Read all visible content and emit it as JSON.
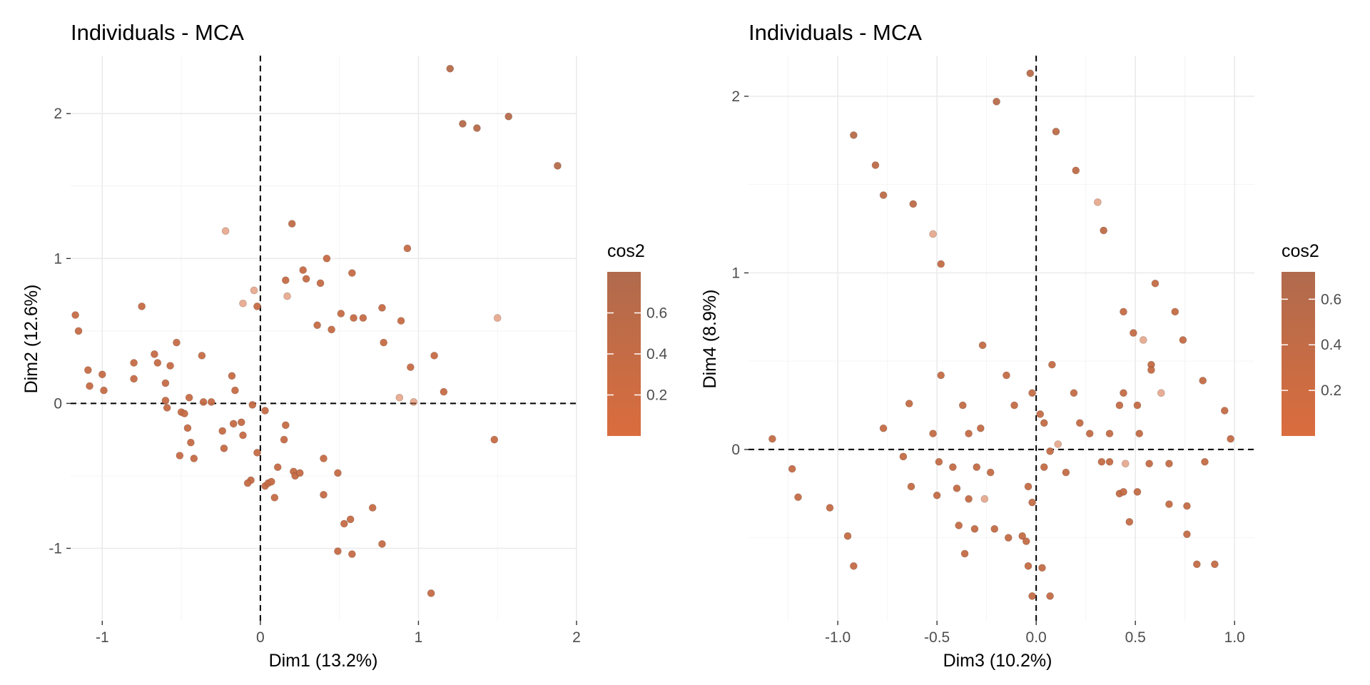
{
  "legend_gradient": {
    "low": "#DA6C3E",
    "high": "#B06B4D"
  },
  "chart_data": [
    {
      "type": "scatter",
      "title": "Individuals - MCA",
      "xlabel": "Dim1 (13.2%)",
      "ylabel": "Dim2 (12.6%)",
      "xlim": [
        -1.2,
        2.0
      ],
      "ylim": [
        -1.5,
        2.4
      ],
      "xticks": [
        -1,
        0,
        1,
        2
      ],
      "xtick_labels": [
        "-1",
        "0",
        "1",
        "2"
      ],
      "yticks": [
        -1,
        0,
        1,
        2
      ],
      "ytick_labels": [
        "-1",
        "0",
        "1",
        "2"
      ],
      "grid": true,
      "reference_lines": "x=0, y=0 (dashed)",
      "color_by": "cos2",
      "legend": {
        "title": "cos2",
        "ticks": [
          0.2,
          0.4,
          0.6
        ],
        "tick_labels": [
          "0.2",
          "0.4",
          "0.6"
        ],
        "range": [
          0.0,
          0.8
        ],
        "position": "right"
      },
      "points": [
        {
          "x": 1.2,
          "y": 2.31,
          "c": 0.7
        },
        {
          "x": 1.28,
          "y": 1.93,
          "c": 0.7
        },
        {
          "x": 1.37,
          "y": 1.9,
          "c": 0.7
        },
        {
          "x": 1.57,
          "y": 1.98,
          "c": 0.7
        },
        {
          "x": 1.88,
          "y": 1.64,
          "c": 0.7
        },
        {
          "x": -0.22,
          "y": 1.19,
          "c": 0.1
        },
        {
          "x": 0.2,
          "y": 1.24,
          "c": 0.5
        },
        {
          "x": 0.42,
          "y": 1.0,
          "c": 0.4
        },
        {
          "x": 0.93,
          "y": 1.07,
          "c": 0.4
        },
        {
          "x": 0.27,
          "y": 0.92,
          "c": 0.4
        },
        {
          "x": 0.16,
          "y": 0.85,
          "c": 0.4
        },
        {
          "x": 0.29,
          "y": 0.86,
          "c": 0.4
        },
        {
          "x": 0.38,
          "y": 0.83,
          "c": 0.4
        },
        {
          "x": 0.58,
          "y": 0.9,
          "c": 0.4
        },
        {
          "x": -0.04,
          "y": 0.78,
          "c": 0.1
        },
        {
          "x": 0.17,
          "y": 0.74,
          "c": 0.1
        },
        {
          "x": -0.11,
          "y": 0.69,
          "c": 0.1
        },
        {
          "x": -0.02,
          "y": 0.67,
          "c": 0.4
        },
        {
          "x": 0.51,
          "y": 0.62,
          "c": 0.4
        },
        {
          "x": 0.77,
          "y": 0.66,
          "c": 0.4
        },
        {
          "x": 0.59,
          "y": 0.59,
          "c": 0.4
        },
        {
          "x": 0.65,
          "y": 0.59,
          "c": 0.4
        },
        {
          "x": 0.89,
          "y": 0.57,
          "c": 0.4
        },
        {
          "x": 1.5,
          "y": 0.59,
          "c": 0.1
        },
        {
          "x": 0.36,
          "y": 0.54,
          "c": 0.4
        },
        {
          "x": 0.45,
          "y": 0.51,
          "c": 0.4
        },
        {
          "x": 0.78,
          "y": 0.42,
          "c": 0.4
        },
        {
          "x": 1.1,
          "y": 0.33,
          "c": 0.4
        },
        {
          "x": 0.95,
          "y": 0.25,
          "c": 0.4
        },
        {
          "x": 1.16,
          "y": 0.08,
          "c": 0.4
        },
        {
          "x": 0.88,
          "y": 0.04,
          "c": 0.1
        },
        {
          "x": 0.97,
          "y": 0.01,
          "c": 0.1
        },
        {
          "x": 1.48,
          "y": -0.25,
          "c": 0.4
        },
        {
          "x": -1.17,
          "y": 0.61,
          "c": 0.4
        },
        {
          "x": -1.15,
          "y": 0.5,
          "c": 0.4
        },
        {
          "x": -0.75,
          "y": 0.67,
          "c": 0.4
        },
        {
          "x": -1.09,
          "y": 0.23,
          "c": 0.4
        },
        {
          "x": -1.0,
          "y": 0.2,
          "c": 0.4
        },
        {
          "x": -1.08,
          "y": 0.12,
          "c": 0.4
        },
        {
          "x": -0.99,
          "y": 0.09,
          "c": 0.4
        },
        {
          "x": -0.8,
          "y": 0.28,
          "c": 0.4
        },
        {
          "x": -0.8,
          "y": 0.17,
          "c": 0.4
        },
        {
          "x": -0.67,
          "y": 0.34,
          "c": 0.4
        },
        {
          "x": -0.65,
          "y": 0.28,
          "c": 0.4
        },
        {
          "x": -0.53,
          "y": 0.42,
          "c": 0.4
        },
        {
          "x": -0.57,
          "y": 0.26,
          "c": 0.4
        },
        {
          "x": -0.37,
          "y": 0.33,
          "c": 0.4
        },
        {
          "x": -0.6,
          "y": 0.14,
          "c": 0.4
        },
        {
          "x": -0.6,
          "y": 0.02,
          "c": 0.4
        },
        {
          "x": -0.59,
          "y": -0.03,
          "c": 0.4
        },
        {
          "x": -0.5,
          "y": -0.06,
          "c": 0.4
        },
        {
          "x": -0.48,
          "y": -0.07,
          "c": 0.4
        },
        {
          "x": -0.45,
          "y": 0.04,
          "c": 0.4
        },
        {
          "x": -0.36,
          "y": 0.01,
          "c": 0.4
        },
        {
          "x": -0.31,
          "y": 0.01,
          "c": 0.4
        },
        {
          "x": -0.18,
          "y": 0.19,
          "c": 0.4
        },
        {
          "x": -0.16,
          "y": 0.09,
          "c": 0.4
        },
        {
          "x": -0.05,
          "y": -0.01,
          "c": 0.4
        },
        {
          "x": 0.03,
          "y": -0.05,
          "c": 0.4
        },
        {
          "x": -0.46,
          "y": -0.17,
          "c": 0.4
        },
        {
          "x": -0.44,
          "y": -0.27,
          "c": 0.4
        },
        {
          "x": -0.51,
          "y": -0.36,
          "c": 0.4
        },
        {
          "x": -0.42,
          "y": -0.38,
          "c": 0.4
        },
        {
          "x": -0.24,
          "y": -0.19,
          "c": 0.4
        },
        {
          "x": -0.23,
          "y": -0.31,
          "c": 0.4
        },
        {
          "x": -0.17,
          "y": -0.14,
          "c": 0.4
        },
        {
          "x": -0.12,
          "y": -0.13,
          "c": 0.4
        },
        {
          "x": -0.11,
          "y": -0.22,
          "c": 0.4
        },
        {
          "x": 0.16,
          "y": -0.15,
          "c": 0.4
        },
        {
          "x": 0.15,
          "y": -0.25,
          "c": 0.4
        },
        {
          "x": -0.02,
          "y": -0.34,
          "c": 0.4
        },
        {
          "x": -0.06,
          "y": -0.53,
          "c": 0.4
        },
        {
          "x": -0.08,
          "y": -0.55,
          "c": 0.4
        },
        {
          "x": 0.03,
          "y": -0.57,
          "c": 0.4
        },
        {
          "x": 0.05,
          "y": -0.55,
          "c": 0.4
        },
        {
          "x": 0.07,
          "y": -0.54,
          "c": 0.4
        },
        {
          "x": 0.09,
          "y": -0.65,
          "c": 0.4
        },
        {
          "x": 0.11,
          "y": -0.44,
          "c": 0.4
        },
        {
          "x": 0.21,
          "y": -0.47,
          "c": 0.4
        },
        {
          "x": 0.22,
          "y": -0.5,
          "c": 0.4
        },
        {
          "x": 0.25,
          "y": -0.48,
          "c": 0.4
        },
        {
          "x": 0.4,
          "y": -0.38,
          "c": 0.4
        },
        {
          "x": 0.49,
          "y": -0.48,
          "c": 0.4
        },
        {
          "x": 0.4,
          "y": -0.63,
          "c": 0.4
        },
        {
          "x": 0.71,
          "y": -0.72,
          "c": 0.4
        },
        {
          "x": 0.53,
          "y": -0.83,
          "c": 0.4
        },
        {
          "x": 0.57,
          "y": -0.8,
          "c": 0.4
        },
        {
          "x": 0.49,
          "y": -1.02,
          "c": 0.4
        },
        {
          "x": 0.58,
          "y": -1.04,
          "c": 0.4
        },
        {
          "x": 0.77,
          "y": -0.97,
          "c": 0.4
        },
        {
          "x": 1.08,
          "y": -1.31,
          "c": 0.4
        }
      ]
    },
    {
      "type": "scatter",
      "title": "Individuals - MCA",
      "xlabel": "Dim3 (10.2%)",
      "ylabel": "Dim4 (8.9%)",
      "xlim": [
        -1.45,
        1.1
      ],
      "ylim": [
        -0.97,
        2.23
      ],
      "xticks": [
        -1.0,
        -0.5,
        0.0,
        0.5,
        1.0
      ],
      "xtick_labels": [
        "-1.0",
        "-0.5",
        "0.0",
        "0.5",
        "1.0"
      ],
      "yticks": [
        0,
        1,
        2
      ],
      "ytick_labels": [
        "0",
        "1",
        "2"
      ],
      "grid": true,
      "reference_lines": "x=0, y=0 (dashed)",
      "color_by": "cos2",
      "legend": {
        "title": "cos2",
        "ticks": [
          0.2,
          0.4,
          0.6
        ],
        "tick_labels": [
          "0.2",
          "0.4",
          "0.6"
        ],
        "range": [
          0.0,
          0.72
        ],
        "position": "right"
      },
      "points": [
        {
          "x": -0.03,
          "y": 2.13,
          "c": 0.6
        },
        {
          "x": -0.2,
          "y": 1.97,
          "c": 0.6
        },
        {
          "x": -0.92,
          "y": 1.78,
          "c": 0.6
        },
        {
          "x": 0.1,
          "y": 1.8,
          "c": 0.5
        },
        {
          "x": -0.81,
          "y": 1.61,
          "c": 0.5
        },
        {
          "x": 0.2,
          "y": 1.58,
          "c": 0.5
        },
        {
          "x": -0.77,
          "y": 1.44,
          "c": 0.5
        },
        {
          "x": -0.62,
          "y": 1.39,
          "c": 0.5
        },
        {
          "x": 0.31,
          "y": 1.4,
          "c": 0.1
        },
        {
          "x": 0.34,
          "y": 1.24,
          "c": 0.5
        },
        {
          "x": -0.52,
          "y": 1.22,
          "c": 0.1
        },
        {
          "x": -0.48,
          "y": 1.05,
          "c": 0.4
        },
        {
          "x": 0.6,
          "y": 0.94,
          "c": 0.4
        },
        {
          "x": 0.44,
          "y": 0.78,
          "c": 0.4
        },
        {
          "x": 0.7,
          "y": 0.78,
          "c": 0.4
        },
        {
          "x": 0.49,
          "y": 0.66,
          "c": 0.4
        },
        {
          "x": 0.54,
          "y": 0.62,
          "c": 0.1
        },
        {
          "x": 0.74,
          "y": 0.62,
          "c": 0.4
        },
        {
          "x": -0.27,
          "y": 0.59,
          "c": 0.4
        },
        {
          "x": 0.08,
          "y": 0.48,
          "c": 0.4
        },
        {
          "x": 0.58,
          "y": 0.48,
          "c": 0.4
        },
        {
          "x": 0.58,
          "y": 0.45,
          "c": 0.4
        },
        {
          "x": -0.48,
          "y": 0.42,
          "c": 0.4
        },
        {
          "x": -0.15,
          "y": 0.42,
          "c": 0.4
        },
        {
          "x": 0.84,
          "y": 0.39,
          "c": 0.4
        },
        {
          "x": -0.02,
          "y": 0.32,
          "c": 0.4
        },
        {
          "x": 0.19,
          "y": 0.32,
          "c": 0.4
        },
        {
          "x": 0.44,
          "y": 0.32,
          "c": 0.4
        },
        {
          "x": 0.63,
          "y": 0.32,
          "c": 0.1
        },
        {
          "x": -0.64,
          "y": 0.26,
          "c": 0.4
        },
        {
          "x": -0.37,
          "y": 0.25,
          "c": 0.4
        },
        {
          "x": -0.11,
          "y": 0.25,
          "c": 0.4
        },
        {
          "x": 0.42,
          "y": 0.25,
          "c": 0.4
        },
        {
          "x": 0.51,
          "y": 0.25,
          "c": 0.4
        },
        {
          "x": 0.95,
          "y": 0.22,
          "c": 0.4
        },
        {
          "x": 0.02,
          "y": 0.2,
          "c": 0.4
        },
        {
          "x": 0.04,
          "y": 0.15,
          "c": 0.4
        },
        {
          "x": 0.22,
          "y": 0.15,
          "c": 0.4
        },
        {
          "x": -0.77,
          "y": 0.12,
          "c": 0.4
        },
        {
          "x": -0.28,
          "y": 0.12,
          "c": 0.4
        },
        {
          "x": -0.52,
          "y": 0.09,
          "c": 0.4
        },
        {
          "x": -0.34,
          "y": 0.09,
          "c": 0.4
        },
        {
          "x": 0.27,
          "y": 0.09,
          "c": 0.4
        },
        {
          "x": 0.37,
          "y": 0.09,
          "c": 0.4
        },
        {
          "x": 0.52,
          "y": 0.09,
          "c": 0.4
        },
        {
          "x": -1.33,
          "y": 0.06,
          "c": 0.4
        },
        {
          "x": 0.98,
          "y": 0.06,
          "c": 0.4
        },
        {
          "x": 0.11,
          "y": 0.03,
          "c": 0.1
        },
        {
          "x": 0.07,
          "y": -0.01,
          "c": 0.4
        },
        {
          "x": -0.67,
          "y": -0.04,
          "c": 0.4
        },
        {
          "x": -0.49,
          "y": -0.07,
          "c": 0.4
        },
        {
          "x": -0.42,
          "y": -0.1,
          "c": 0.4
        },
        {
          "x": -0.3,
          "y": -0.1,
          "c": 0.4
        },
        {
          "x": -0.23,
          "y": -0.13,
          "c": 0.4
        },
        {
          "x": 0.04,
          "y": -0.1,
          "c": 0.4
        },
        {
          "x": 0.15,
          "y": -0.13,
          "c": 0.4
        },
        {
          "x": 0.33,
          "y": -0.07,
          "c": 0.4
        },
        {
          "x": 0.37,
          "y": -0.07,
          "c": 0.4
        },
        {
          "x": 0.45,
          "y": -0.08,
          "c": 0.1
        },
        {
          "x": 0.57,
          "y": -0.08,
          "c": 0.4
        },
        {
          "x": 0.67,
          "y": -0.08,
          "c": 0.4
        },
        {
          "x": 0.85,
          "y": -0.07,
          "c": 0.4
        },
        {
          "x": -1.23,
          "y": -0.11,
          "c": 0.4
        },
        {
          "x": -0.63,
          "y": -0.21,
          "c": 0.4
        },
        {
          "x": -0.5,
          "y": -0.26,
          "c": 0.4
        },
        {
          "x": -0.4,
          "y": -0.22,
          "c": 0.4
        },
        {
          "x": -0.34,
          "y": -0.28,
          "c": 0.4
        },
        {
          "x": -0.26,
          "y": -0.28,
          "c": 0.1
        },
        {
          "x": -0.04,
          "y": -0.21,
          "c": 0.4
        },
        {
          "x": -0.02,
          "y": -0.3,
          "c": 0.4
        },
        {
          "x": 0.42,
          "y": -0.25,
          "c": 0.4
        },
        {
          "x": 0.44,
          "y": -0.24,
          "c": 0.4
        },
        {
          "x": 0.51,
          "y": -0.24,
          "c": 0.4
        },
        {
          "x": -1.2,
          "y": -0.27,
          "c": 0.4
        },
        {
          "x": -1.04,
          "y": -0.33,
          "c": 0.4
        },
        {
          "x": 0.67,
          "y": -0.31,
          "c": 0.4
        },
        {
          "x": 0.76,
          "y": -0.32,
          "c": 0.4
        },
        {
          "x": -0.39,
          "y": -0.43,
          "c": 0.4
        },
        {
          "x": -0.31,
          "y": -0.45,
          "c": 0.4
        },
        {
          "x": -0.21,
          "y": -0.45,
          "c": 0.4
        },
        {
          "x": -0.14,
          "y": -0.5,
          "c": 0.4
        },
        {
          "x": -0.07,
          "y": -0.49,
          "c": 0.4
        },
        {
          "x": -0.05,
          "y": -0.52,
          "c": 0.4
        },
        {
          "x": -0.95,
          "y": -0.49,
          "c": 0.4
        },
        {
          "x": 0.47,
          "y": -0.41,
          "c": 0.4
        },
        {
          "x": 0.76,
          "y": -0.48,
          "c": 0.4
        },
        {
          "x": -0.36,
          "y": -0.59,
          "c": 0.4
        },
        {
          "x": -0.92,
          "y": -0.66,
          "c": 0.4
        },
        {
          "x": -0.04,
          "y": -0.66,
          "c": 0.4
        },
        {
          "x": 0.03,
          "y": -0.67,
          "c": 0.4
        },
        {
          "x": 0.81,
          "y": -0.65,
          "c": 0.4
        },
        {
          "x": 0.9,
          "y": -0.65,
          "c": 0.4
        },
        {
          "x": -0.02,
          "y": -0.83,
          "c": 0.4
        },
        {
          "x": 0.07,
          "y": -0.83,
          "c": 0.4
        }
      ]
    }
  ]
}
